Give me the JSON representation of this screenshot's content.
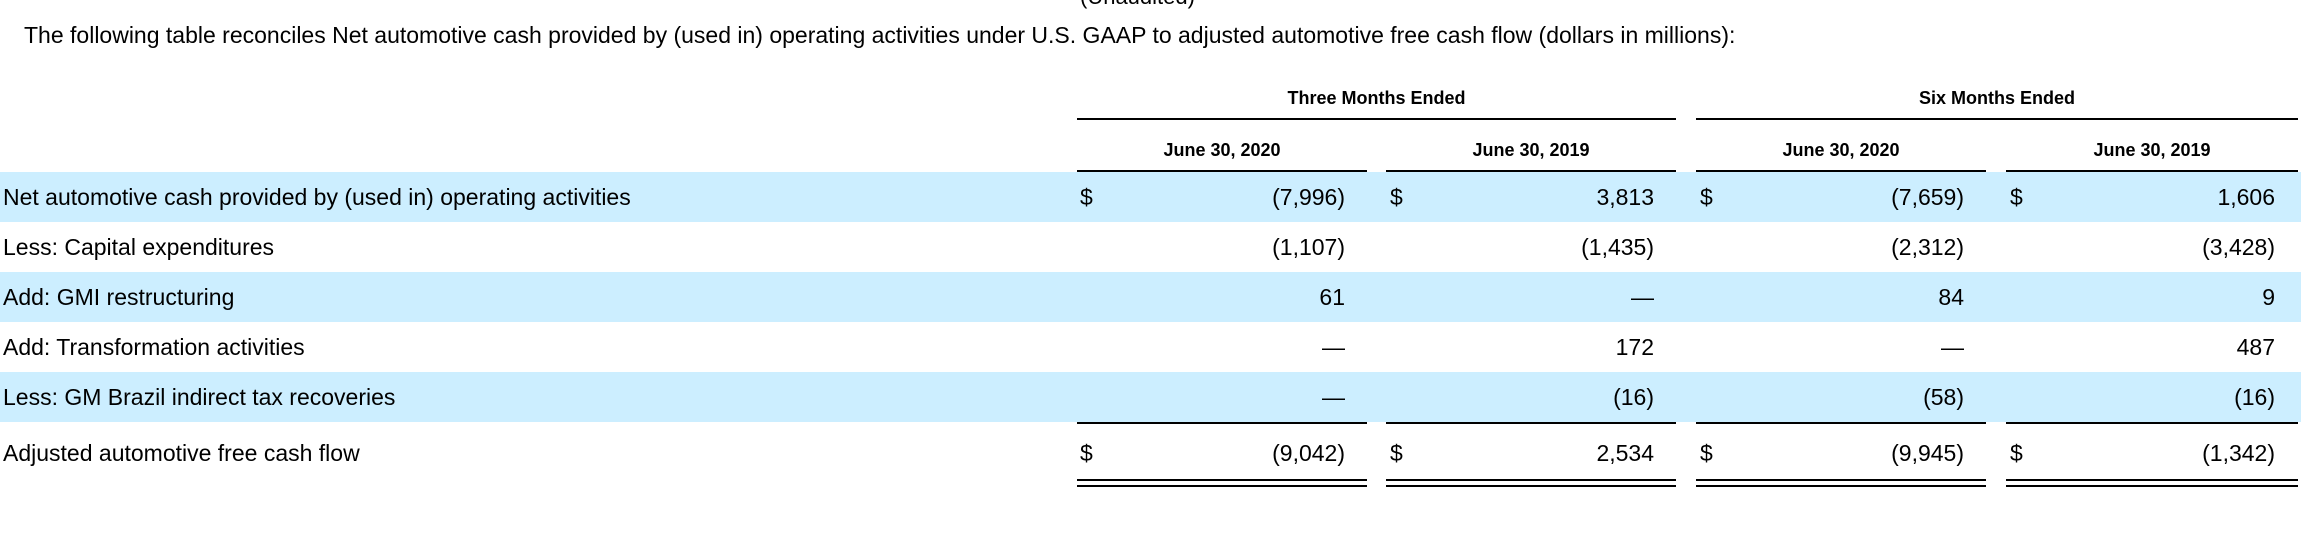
{
  "header_clip": "(Unaudited)",
  "intro": "The following table reconciles Net automotive cash provided by (used in) operating activities under U.S. GAAP to adjusted automotive free cash flow (dollars in millions):",
  "groups": [
    "Three Months Ended",
    "Six Months Ended"
  ],
  "columns": [
    "June 30, 2020",
    "June 30, 2019",
    "June 30, 2020",
    "June 30, 2019"
  ],
  "rows": [
    {
      "label": "Net automotive cash provided by (used in) operating activities",
      "currency": [
        "$",
        "$",
        "$",
        "$"
      ],
      "values": [
        "(7,996)",
        "3,813",
        "(7,659)",
        "1,606"
      ]
    },
    {
      "label": "Less: Capital expenditures",
      "currency": [
        "",
        "",
        "",
        ""
      ],
      "values": [
        "(1,107)",
        "(1,435)",
        "(2,312)",
        "(3,428)"
      ]
    },
    {
      "label": "Add: GMI restructuring",
      "currency": [
        "",
        "",
        "",
        ""
      ],
      "values": [
        "61",
        "—",
        "84",
        "9"
      ]
    },
    {
      "label": "Add: Transformation activities",
      "currency": [
        "",
        "",
        "",
        ""
      ],
      "values": [
        "—",
        "172",
        "—",
        "487"
      ]
    },
    {
      "label": "Less: GM Brazil indirect tax recoveries",
      "currency": [
        "",
        "",
        "",
        ""
      ],
      "values": [
        "—",
        "(16)",
        "(58)",
        "(16)"
      ]
    },
    {
      "label": "Adjusted automotive free cash flow",
      "currency": [
        "$",
        "$",
        "$",
        "$"
      ],
      "values": [
        "(9,042)",
        "2,534",
        "(9,945)",
        "(1,342)"
      ]
    }
  ],
  "colors": {
    "row_shade": "#cceeff",
    "text": "#000000"
  }
}
